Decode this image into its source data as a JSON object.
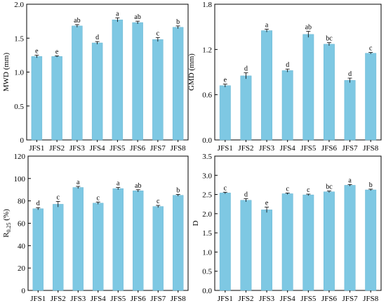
{
  "colors": {
    "bar": "#7ec8e3",
    "bar_stroke": "#6ab6d3",
    "axis": "#000000"
  },
  "chart_data": [
    {
      "type": "bar",
      "ylabel": "MWD (mm)",
      "ylabel_sub": "",
      "ylabel_rest": "",
      "categories": [
        "JFS1",
        "JFS2",
        "JFS3",
        "JFS4",
        "JFS5",
        "JFS6",
        "JFS7",
        "JFS8"
      ],
      "values": [
        1.23,
        1.23,
        1.68,
        1.43,
        1.77,
        1.73,
        1.48,
        1.66
      ],
      "errors": [
        0.02,
        0.01,
        0.02,
        0.02,
        0.03,
        0.02,
        0.03,
        0.02
      ],
      "significance": [
        "e",
        "e",
        "ab",
        "d",
        "a",
        "ab",
        "c",
        "b"
      ],
      "ylim": [
        0,
        2.0
      ],
      "yticks": [
        "0",
        "0.5",
        "1.0",
        "1.5",
        "2.0"
      ],
      "ytick_values": [
        0,
        0.5,
        1.0,
        1.5,
        2.0
      ]
    },
    {
      "type": "bar",
      "ylabel": "GMD (mm)",
      "ylabel_sub": "",
      "ylabel_rest": "",
      "categories": [
        "JFS1",
        "JFS2",
        "JFS3",
        "JFS4",
        "JFS5",
        "JFS6",
        "JFS7",
        "JFS8"
      ],
      "values": [
        0.72,
        0.85,
        1.45,
        0.92,
        1.4,
        1.27,
        0.79,
        1.15
      ],
      "errors": [
        0.02,
        0.04,
        0.02,
        0.02,
        0.04,
        0.02,
        0.03,
        0.01
      ],
      "significance": [
        "e",
        "d",
        "a",
        "d",
        "ab",
        "bc",
        "d",
        "c"
      ],
      "ylim": [
        0,
        1.8
      ],
      "yticks": [
        "0.0",
        "0.6",
        "1.2",
        "1.8"
      ],
      "ytick_values": [
        0,
        0.6,
        1.2,
        1.8
      ]
    },
    {
      "type": "bar",
      "ylabel": "R",
      "ylabel_sub": "0.25",
      "ylabel_rest": " (%)",
      "categories": [
        "JFS1",
        "JFS2",
        "JFS3",
        "JFS4",
        "JFS5",
        "JFS6",
        "JFS7",
        "JFS8"
      ],
      "values": [
        73,
        77,
        92,
        78,
        91,
        89,
        75,
        85
      ],
      "errors": [
        1,
        2.5,
        1,
        1,
        1,
        1,
        1,
        0.8
      ],
      "significance": [
        "d",
        "c",
        "a",
        "c",
        "a",
        "ab",
        "c",
        "b"
      ],
      "ylim": [
        0,
        120
      ],
      "yticks": [
        "0",
        "20",
        "40",
        "60",
        "80",
        "100",
        "120"
      ],
      "ytick_values": [
        0,
        20,
        40,
        60,
        80,
        100,
        120
      ]
    },
    {
      "type": "bar",
      "ylabel": "D",
      "ylabel_sub": "",
      "ylabel_rest": "",
      "categories": [
        "JFS1",
        "JFS2",
        "JFS3",
        "JFS4",
        "JFS5",
        "JFS6",
        "JFS7",
        "JFS8"
      ],
      "values": [
        2.54,
        2.35,
        2.1,
        2.52,
        2.49,
        2.57,
        2.74,
        2.62
      ],
      "errors": [
        0.02,
        0.04,
        0.07,
        0.02,
        0.02,
        0.02,
        0.02,
        0.02
      ],
      "significance": [
        "c",
        "d",
        "e",
        "c",
        "c",
        "bc",
        "a",
        "b"
      ],
      "ylim": [
        0,
        3.5
      ],
      "yticks": [
        "0.0",
        "0.5",
        "1.0",
        "1.5",
        "2.0",
        "2.5",
        "3.0",
        "3.5"
      ],
      "ytick_values": [
        0,
        0.5,
        1.0,
        1.5,
        2.0,
        2.5,
        3.0,
        3.5
      ]
    }
  ]
}
